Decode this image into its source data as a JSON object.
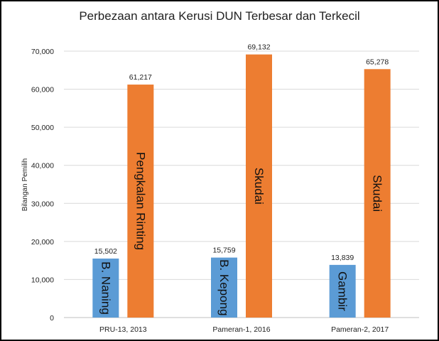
{
  "chart_data": {
    "type": "bar",
    "title": "Perbezaan antara Kerusi DUN Terbesar dan Terkecil",
    "xlabel": "",
    "ylabel": "Bilangan Pemilih",
    "ylim": [
      0,
      70000
    ],
    "yticks": [
      0,
      10000,
      20000,
      30000,
      40000,
      50000,
      60000,
      70000
    ],
    "ytick_labels": [
      "0",
      "10,000",
      "20,000",
      "30,000",
      "40,000",
      "50,000",
      "60,000",
      "70,000"
    ],
    "categories": [
      "PRU-13, 2013",
      "Pameran-1, 2016",
      "Pameran-2, 2017"
    ],
    "series": [
      {
        "color": "#5b9bd5",
        "values": [
          15502,
          15759,
          13839
        ],
        "value_labels": [
          "15,502",
          "15,759",
          "13,839"
        ],
        "bar_labels": [
          "B. Naning",
          "B. Kepong",
          "Gambir"
        ]
      },
      {
        "color": "#ed7d31",
        "values": [
          61217,
          69132,
          65278
        ],
        "value_labels": [
          "61,217",
          "69,132",
          "65,278"
        ],
        "bar_labels": [
          "Pengkalan Rinting",
          "Skudai",
          "Skudai"
        ]
      }
    ],
    "grid": true,
    "gridline_color": "#d9d9d9",
    "legend": "none"
  }
}
